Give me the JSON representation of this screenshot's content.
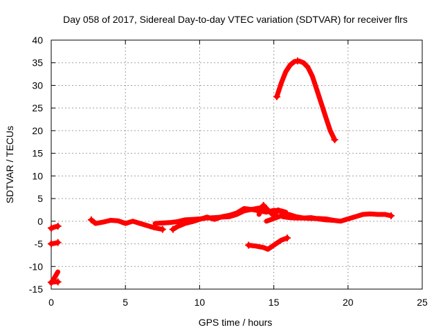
{
  "chart_data": {
    "type": "scatter",
    "title": "Day 058 of 2017, Sidereal Day-to-day VTEC variation (SDTVAR) for receiver flrs",
    "xlabel": "GPS time / hours",
    "ylabel": "SDTVAR / TECUs",
    "xlim": [
      0,
      25
    ],
    "ylim": [
      -15,
      40
    ],
    "xticks": [
      "0",
      "5",
      "10",
      "15",
      "20",
      "25"
    ],
    "yticks": [
      "-15",
      "-10",
      "-5",
      "0",
      "5",
      "10",
      "15",
      "20",
      "25",
      "30",
      "35",
      "40"
    ],
    "grid": true,
    "color": "#ff0000",
    "series": [
      {
        "name": "seg-a",
        "points": [
          [
            0.0,
            -1.6
          ],
          [
            0.2,
            -1.3
          ],
          [
            0.45,
            -1.1
          ]
        ]
      },
      {
        "name": "seg-b",
        "points": [
          [
            0.0,
            -5.0
          ],
          [
            0.2,
            -4.9
          ],
          [
            0.45,
            -4.7
          ]
        ]
      },
      {
        "name": "seg-c",
        "points": [
          [
            0.0,
            -13.6
          ],
          [
            0.2,
            -12.6
          ],
          [
            0.45,
            -11.2
          ]
        ]
      },
      {
        "name": "seg-d",
        "points": [
          [
            0.0,
            -13.5
          ],
          [
            0.25,
            -13.4
          ],
          [
            0.45,
            -13.4
          ]
        ]
      },
      {
        "name": "seg-e",
        "points": [
          [
            2.7,
            0.3
          ],
          [
            3.0,
            -0.5
          ],
          [
            3.5,
            -0.2
          ],
          [
            4.0,
            0.2
          ],
          [
            4.5,
            0.1
          ],
          [
            5.0,
            -0.5
          ],
          [
            5.5,
            0.0
          ],
          [
            6.0,
            -0.5
          ],
          [
            6.5,
            -1.0
          ],
          [
            7.0,
            -1.5
          ],
          [
            7.5,
            -1.8
          ]
        ]
      },
      {
        "name": "seg-f",
        "points": [
          [
            7.0,
            -0.5
          ],
          [
            7.5,
            -0.4
          ],
          [
            8.0,
            -0.3
          ],
          [
            8.5,
            -0.1
          ],
          [
            9.0,
            0.3
          ],
          [
            9.5,
            0.4
          ],
          [
            10.0,
            0.5
          ],
          [
            10.5,
            0.7
          ],
          [
            11.0,
            0.8
          ],
          [
            11.5,
            0.9
          ],
          [
            12.0,
            1.0
          ],
          [
            12.5,
            1.5
          ],
          [
            13.0,
            2.3
          ],
          [
            13.5,
            2.6
          ],
          [
            14.0,
            2.3
          ],
          [
            14.5,
            2.0
          ],
          [
            15.0,
            2.4
          ],
          [
            15.5,
            2.3
          ],
          [
            15.8,
            2.0
          ]
        ]
      },
      {
        "name": "seg-g",
        "points": [
          [
            8.2,
            -1.8
          ],
          [
            8.5,
            -1.2
          ],
          [
            9.0,
            -0.5
          ],
          [
            9.5,
            -0.1
          ],
          [
            10.0,
            0.4
          ],
          [
            10.5,
            0.9
          ],
          [
            11.0,
            0.4
          ],
          [
            11.5,
            1.0
          ],
          [
            12.0,
            1.3
          ],
          [
            12.5,
            1.8
          ],
          [
            13.0,
            2.8
          ],
          [
            13.5,
            2.6
          ],
          [
            14.0,
            2.9
          ]
        ]
      },
      {
        "name": "seg-h",
        "points": [
          [
            14.0,
            1.5
          ],
          [
            14.3,
            3.5
          ],
          [
            14.6,
            2.5
          ],
          [
            15.0,
            1.2
          ],
          [
            15.3,
            2.5
          ],
          [
            15.6,
            1.8
          ]
        ]
      },
      {
        "name": "seg-i",
        "points": [
          [
            14.5,
            0.0
          ],
          [
            15.0,
            0.6
          ],
          [
            15.5,
            1.2
          ],
          [
            16.0,
            1.5
          ],
          [
            16.5,
            1.0
          ],
          [
            17.0,
            0.7
          ],
          [
            17.5,
            0.8
          ],
          [
            18.0,
            0.5
          ],
          [
            18.5,
            0.3
          ],
          [
            19.0,
            0.2
          ],
          [
            19.5,
            0.0
          ],
          [
            20.0,
            0.5
          ],
          [
            20.5,
            1.0
          ],
          [
            21.0,
            1.5
          ],
          [
            21.5,
            1.6
          ],
          [
            22.0,
            1.5
          ],
          [
            22.5,
            1.5
          ],
          [
            22.9,
            1.2
          ]
        ]
      },
      {
        "name": "seg-j",
        "points": [
          [
            15.6,
            1.0
          ],
          [
            16.0,
            0.8
          ],
          [
            16.5,
            0.7
          ],
          [
            17.0,
            0.7
          ],
          [
            17.5,
            0.6
          ],
          [
            18.0,
            0.6
          ],
          [
            18.5,
            0.5
          ],
          [
            19.0,
            0.2
          ]
        ]
      },
      {
        "name": "seg-k",
        "points": [
          [
            13.3,
            -5.3
          ],
          [
            13.8,
            -5.5
          ],
          [
            14.3,
            -5.8
          ],
          [
            14.6,
            -6.2
          ],
          [
            15.0,
            -5.3
          ],
          [
            15.5,
            -4.2
          ],
          [
            15.9,
            -3.7
          ]
        ]
      },
      {
        "name": "seg-l",
        "points": [
          [
            15.2,
            27.5
          ],
          [
            15.5,
            30.5
          ],
          [
            15.8,
            33.0
          ],
          [
            16.1,
            34.5
          ],
          [
            16.4,
            35.3
          ],
          [
            16.7,
            35.4
          ],
          [
            17.0,
            35.0
          ],
          [
            17.3,
            34.0
          ],
          [
            17.6,
            32.0
          ],
          [
            17.9,
            29.0
          ],
          [
            18.2,
            26.0
          ],
          [
            18.5,
            23.0
          ],
          [
            18.8,
            20.0
          ],
          [
            19.1,
            18.0
          ]
        ]
      }
    ],
    "markers": [
      [
        0.0,
        -1.5
      ],
      [
        0.45,
        -1.1
      ],
      [
        0.0,
        -5.0
      ],
      [
        0.45,
        -4.7
      ],
      [
        0.0,
        -13.5
      ],
      [
        0.45,
        -13.4
      ],
      [
        2.7,
        0.3
      ],
      [
        7.5,
        -1.8
      ],
      [
        8.2,
        -1.8
      ],
      [
        13.3,
        -5.3
      ],
      [
        15.9,
        -3.7
      ],
      [
        15.2,
        27.5
      ],
      [
        16.6,
        35.4
      ],
      [
        19.1,
        18.0
      ],
      [
        14.3,
        3.5
      ],
      [
        22.9,
        1.2
      ]
    ]
  }
}
